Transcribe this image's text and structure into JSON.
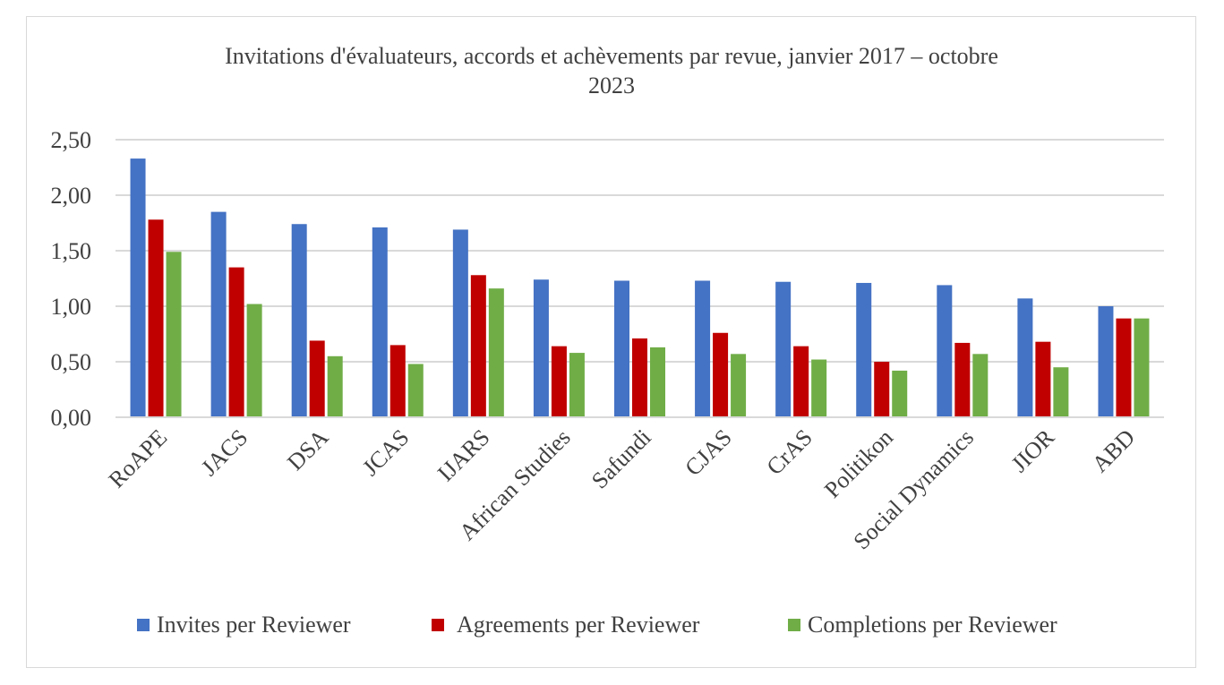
{
  "chart_data": {
    "type": "bar",
    "title": "Invitations d'évaluateurs, accords et achèvements par revue, janvier 2017 – octobre 2023",
    "title_lines": [
      "Invitations d'évaluateurs, accords et achèvements par revue, janvier 2017 – octobre",
      "2023"
    ],
    "xlabel": "",
    "ylabel": "",
    "ylim": [
      0,
      2.5
    ],
    "yticks": [
      "0,00",
      "0,50",
      "1,00",
      "1,50",
      "2,00",
      "2,50"
    ],
    "grid": true,
    "legend_position": "bottom",
    "categories": [
      "RoAPE",
      "JACS",
      "DSA",
      "JCAS",
      "IJARS",
      "African Studies",
      "Safundi",
      "CJAS",
      "CrAS",
      "Politikon",
      "Social Dynamics",
      "JIOR",
      "ABD"
    ],
    "series": [
      {
        "name": "Invites per Reviewer",
        "color": "#4472c4",
        "values": [
          2.33,
          1.85,
          1.74,
          1.71,
          1.69,
          1.24,
          1.23,
          1.23,
          1.22,
          1.21,
          1.19,
          1.07,
          1.0
        ]
      },
      {
        "name": "Agreements per Reviewer",
        "color": "#c00000",
        "values": [
          1.78,
          1.35,
          0.69,
          0.65,
          1.28,
          0.64,
          0.71,
          0.76,
          0.64,
          0.5,
          0.67,
          0.68,
          0.89
        ]
      },
      {
        "name": "Completions per Reviewer",
        "color": "#70ad47",
        "values": [
          1.49,
          1.02,
          0.55,
          0.48,
          1.16,
          0.58,
          0.63,
          0.57,
          0.52,
          0.42,
          0.57,
          0.45,
          0.89
        ]
      }
    ]
  }
}
